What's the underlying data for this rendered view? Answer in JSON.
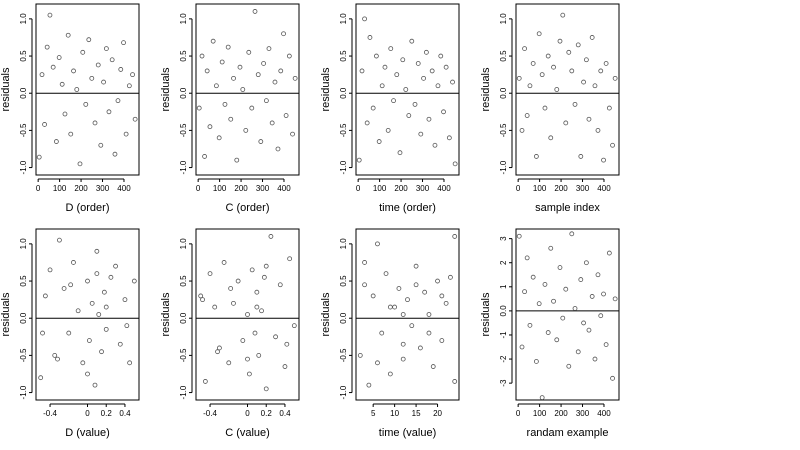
{
  "figure": {
    "panels": [
      {
        "id": "d-order",
        "ylabel": "residuals",
        "xlabel": "D (order)",
        "xticks": [
          0,
          100,
          200,
          300,
          400
        ],
        "xlim": [
          -10,
          470
        ],
        "yticks": [
          -1.0,
          -0.5,
          0.0,
          0.5,
          1.0
        ],
        "ylim": [
          -1.1,
          1.2
        ]
      },
      {
        "id": "c-order",
        "ylabel": "residuals",
        "xlabel": "C (order)",
        "xticks": [
          0,
          100,
          200,
          300,
          400
        ],
        "xlim": [
          -10,
          470
        ],
        "yticks": [
          -1.0,
          -0.5,
          0.0,
          0.5,
          1.0
        ],
        "ylim": [
          -1.1,
          1.2
        ]
      },
      {
        "id": "time-order",
        "ylabel": "residuals",
        "xlabel": "time (order)",
        "xticks": [
          0,
          100,
          200,
          300,
          400
        ],
        "xlim": [
          -10,
          470
        ],
        "yticks": [
          -1.0,
          -0.5,
          0.0,
          0.5,
          1.0
        ],
        "ylim": [
          -1.1,
          1.2
        ]
      },
      {
        "id": "sample-index",
        "ylabel": "residuals",
        "xlabel": "sample index",
        "xticks": [
          0,
          100,
          200,
          300,
          400
        ],
        "xlim": [
          -10,
          470
        ],
        "yticks": [
          -1.0,
          -0.5,
          0.0,
          0.5,
          1.0
        ],
        "ylim": [
          -1.1,
          1.2
        ]
      },
      {
        "id": "d-value",
        "ylabel": "residuals",
        "xlabel": "D (value)",
        "xticks": [
          -0.4,
          0.0,
          0.2,
          0.4
        ],
        "xlim": [
          -0.55,
          0.55
        ],
        "yticks": [
          -1.0,
          -0.5,
          0.0,
          0.5,
          1.0
        ],
        "ylim": [
          -1.1,
          1.2
        ]
      },
      {
        "id": "c-value",
        "ylabel": "residuals",
        "xlabel": "C (value)",
        "xticks": [
          -0.4,
          0.0,
          0.2,
          0.4
        ],
        "xlim": [
          -0.55,
          0.55
        ],
        "yticks": [
          -1.0,
          -0.5,
          0.0,
          0.5,
          1.0
        ],
        "ylim": [
          -1.1,
          1.2
        ]
      },
      {
        "id": "time-value",
        "ylabel": "residuals",
        "xlabel": "time (value)",
        "xticks": [
          5,
          10,
          15,
          20
        ],
        "xlim": [
          1,
          25
        ],
        "yticks": [
          -1.0,
          -0.5,
          0.0,
          0.5,
          1.0
        ],
        "ylim": [
          -1.1,
          1.2
        ]
      },
      {
        "id": "randam-example",
        "ylabel": "residuals",
        "xlabel": "randam example",
        "xticks": [
          0,
          100,
          200,
          300,
          400
        ],
        "xlim": [
          -10,
          470
        ],
        "yticks": [
          -3,
          -2,
          -1,
          0,
          1,
          2,
          3
        ],
        "ylim": [
          -3.7,
          3.4
        ]
      }
    ]
  },
  "chart_data": [
    {
      "type": "scatter",
      "xlabel": "D (order)",
      "ylabel": "residuals",
      "xlim": [
        -10,
        470
      ],
      "ylim": [
        -1.1,
        1.2
      ],
      "hline": 0,
      "x": [
        5,
        18,
        30,
        42,
        55,
        70,
        85,
        98,
        112,
        125,
        140,
        152,
        165,
        180,
        195,
        208,
        222,
        236,
        250,
        265,
        280,
        292,
        305,
        318,
        330,
        345,
        358,
        372,
        385,
        398,
        410,
        425,
        440,
        452
      ],
      "y": [
        -0.86,
        0.25,
        -0.42,
        0.62,
        1.05,
        0.35,
        -0.65,
        0.48,
        0.12,
        -0.28,
        0.78,
        -0.55,
        0.3,
        0.05,
        -0.95,
        0.55,
        -0.15,
        0.72,
        0.2,
        -0.4,
        0.38,
        -0.7,
        0.15,
        0.6,
        -0.25,
        0.45,
        -0.82,
        -0.1,
        0.32,
        0.68,
        -0.55,
        0.1,
        0.25,
        -0.35
      ]
    },
    {
      "type": "scatter",
      "xlabel": "C (order)",
      "ylabel": "residuals",
      "xlim": [
        -10,
        470
      ],
      "ylim": [
        -1.1,
        1.2
      ],
      "hline": 0,
      "x": [
        5,
        18,
        30,
        42,
        55,
        70,
        85,
        98,
        112,
        125,
        140,
        152,
        165,
        180,
        195,
        208,
        222,
        236,
        250,
        265,
        280,
        292,
        305,
        318,
        330,
        345,
        358,
        372,
        385,
        398,
        410,
        425,
        440,
        452
      ],
      "y": [
        -0.2,
        0.5,
        -0.85,
        0.3,
        -0.45,
        0.7,
        0.1,
        -0.6,
        0.42,
        -0.15,
        0.62,
        -0.35,
        0.2,
        -0.9,
        0.35,
        0.05,
        -0.5,
        0.55,
        -0.2,
        1.1,
        0.25,
        -0.65,
        0.4,
        -0.1,
        0.6,
        -0.4,
        0.15,
        -0.75,
        0.3,
        0.8,
        -0.3,
        0.5,
        -0.55,
        0.2
      ]
    },
    {
      "type": "scatter",
      "xlabel": "time (order)",
      "ylabel": "residuals",
      "xlim": [
        -10,
        470
      ],
      "ylim": [
        -1.1,
        1.2
      ],
      "hline": 0,
      "x": [
        5,
        18,
        30,
        42,
        55,
        70,
        85,
        98,
        112,
        125,
        140,
        152,
        165,
        180,
        195,
        208,
        222,
        236,
        250,
        265,
        280,
        292,
        305,
        318,
        330,
        345,
        358,
        372,
        385,
        398,
        410,
        425,
        440,
        452
      ],
      "y": [
        -0.9,
        0.3,
        1.0,
        -0.4,
        0.75,
        -0.2,
        0.5,
        -0.65,
        0.1,
        0.35,
        -0.5,
        0.6,
        -0.1,
        0.25,
        -0.8,
        0.45,
        0.05,
        -0.3,
        0.7,
        -0.15,
        0.4,
        -0.55,
        0.2,
        0.55,
        -0.35,
        0.3,
        -0.7,
        0.1,
        0.5,
        -0.25,
        0.35,
        -0.6,
        0.15,
        -0.95
      ]
    },
    {
      "type": "scatter",
      "xlabel": "sample index",
      "ylabel": "residuals",
      "xlim": [
        -10,
        470
      ],
      "ylim": [
        -1.1,
        1.2
      ],
      "hline": 0,
      "x": [
        5,
        18,
        30,
        42,
        55,
        70,
        85,
        98,
        112,
        125,
        140,
        152,
        165,
        180,
        195,
        208,
        222,
        236,
        250,
        265,
        280,
        292,
        305,
        318,
        330,
        345,
        358,
        372,
        385,
        398,
        410,
        425,
        440,
        452
      ],
      "y": [
        0.2,
        -0.5,
        0.6,
        -0.3,
        0.1,
        0.4,
        -0.85,
        0.8,
        0.25,
        -0.2,
        0.5,
        -0.6,
        0.35,
        0.05,
        0.7,
        1.05,
        -0.4,
        0.55,
        0.3,
        -0.15,
        0.65,
        -0.85,
        0.15,
        0.45,
        -0.35,
        0.75,
        0.1,
        -0.5,
        0.3,
        -0.9,
        0.4,
        -0.2,
        -0.7,
        0.2
      ]
    },
    {
      "type": "scatter",
      "xlabel": "D (value)",
      "ylabel": "residuals",
      "xlim": [
        -0.55,
        0.55
      ],
      "ylim": [
        -1.1,
        1.2
      ],
      "hline": 0,
      "x": [
        -0.5,
        -0.45,
        -0.4,
        -0.35,
        -0.3,
        -0.25,
        -0.2,
        -0.15,
        -0.1,
        -0.05,
        0.0,
        0.02,
        0.05,
        0.08,
        0.1,
        0.12,
        0.15,
        0.18,
        0.2,
        0.25,
        0.3,
        0.35,
        0.4,
        0.45,
        0.5,
        -0.48,
        -0.32,
        -0.18,
        0.0,
        0.1,
        0.2,
        0.42
      ],
      "y": [
        -0.8,
        0.3,
        0.65,
        -0.5,
        1.05,
        0.4,
        -0.2,
        0.75,
        0.1,
        -0.6,
        0.5,
        -0.3,
        0.2,
        -0.9,
        0.6,
        0.05,
        -0.45,
        0.35,
        -0.15,
        0.55,
        0.7,
        -0.35,
        0.25,
        -0.6,
        0.5,
        -0.2,
        -0.55,
        0.45,
        -0.75,
        0.9,
        0.15,
        -0.1
      ]
    },
    {
      "type": "scatter",
      "xlabel": "C (value)",
      "ylabel": "residuals",
      "xlim": [
        -0.55,
        0.55
      ],
      "ylim": [
        -1.1,
        1.2
      ],
      "hline": 0,
      "x": [
        -0.5,
        -0.45,
        -0.4,
        -0.35,
        -0.3,
        -0.25,
        -0.2,
        -0.15,
        -0.1,
        -0.05,
        0.0,
        0.02,
        0.05,
        0.08,
        0.1,
        0.12,
        0.15,
        0.18,
        0.2,
        0.25,
        0.3,
        0.35,
        0.4,
        0.45,
        0.5,
        -0.48,
        -0.32,
        -0.18,
        0.0,
        0.1,
        0.2,
        0.42
      ],
      "y": [
        0.3,
        -0.85,
        0.6,
        0.15,
        -0.4,
        0.75,
        -0.6,
        0.2,
        0.5,
        -0.3,
        0.05,
        -0.75,
        0.65,
        -0.2,
        0.35,
        -0.5,
        0.1,
        0.55,
        -0.95,
        1.1,
        -0.25,
        0.45,
        -0.65,
        0.8,
        -0.1,
        0.25,
        -0.45,
        0.4,
        -0.55,
        0.15,
        0.7,
        -0.35
      ]
    },
    {
      "type": "scatter",
      "xlabel": "time (value)",
      "ylabel": "residuals",
      "xlim": [
        1,
        25
      ],
      "ylim": [
        -1.1,
        1.2
      ],
      "hline": 0,
      "x": [
        2,
        3,
        4,
        5,
        6,
        7,
        8,
        9,
        10,
        11,
        12,
        13,
        14,
        15,
        16,
        17,
        18,
        19,
        20,
        21,
        22,
        23,
        24,
        3,
        6,
        9,
        12,
        15,
        18,
        21,
        24,
        12
      ],
      "y": [
        -0.5,
        0.45,
        -0.9,
        0.3,
        1.0,
        -0.2,
        0.6,
        -0.75,
        0.15,
        0.4,
        -0.55,
        0.25,
        -0.1,
        0.7,
        -0.4,
        0.35,
        0.05,
        -0.65,
        0.5,
        -0.3,
        0.2,
        0.55,
        -0.85,
        0.75,
        -0.6,
        0.15,
        -0.35,
        0.45,
        -0.2,
        0.3,
        1.1,
        0.05
      ]
    },
    {
      "type": "scatter",
      "xlabel": "randam example",
      "ylabel": "residuals",
      "xlim": [
        -10,
        470
      ],
      "ylim": [
        -3.7,
        3.4
      ],
      "hline": 0,
      "x": [
        5,
        18,
        30,
        42,
        55,
        70,
        85,
        98,
        112,
        125,
        140,
        152,
        165,
        180,
        195,
        208,
        222,
        236,
        250,
        265,
        280,
        292,
        305,
        318,
        330,
        345,
        358,
        372,
        385,
        398,
        410,
        425,
        440,
        452
      ],
      "y": [
        3.1,
        -1.5,
        0.8,
        2.2,
        -0.6,
        1.4,
        -2.1,
        0.3,
        -3.6,
        1.1,
        -0.9,
        2.6,
        0.4,
        -1.2,
        1.8,
        -0.3,
        0.9,
        -2.3,
        3.2,
        0.1,
        -1.7,
        1.3,
        -0.5,
        2.0,
        -0.8,
        0.6,
        -2.0,
        1.5,
        -0.2,
        0.7,
        -1.4,
        2.4,
        -2.8,
        0.5
      ]
    }
  ]
}
